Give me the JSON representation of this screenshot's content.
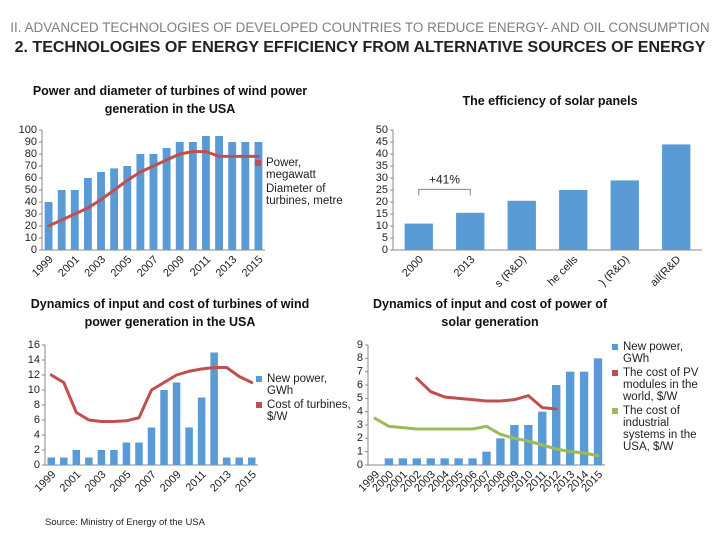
{
  "header": {
    "line1": "II. ADVANCED TECHNOLOGIES OF DEVELOPED COUNTRIES TO REDUCE ENERGY- AND OIL CONSUMPTION",
    "line2": "2. TECHNOLOGIES OF ENERGY EFFICIENCY FROM ALTERNATIVE SOURCES OF ENERGY"
  },
  "source": "Source: Ministry of Energy of the USA",
  "chart_data": [
    {
      "type": "combo",
      "title": "Power and diameter of turbines of wind power generation in the USA",
      "categories": [
        "1999",
        null,
        "2001",
        null,
        "2003",
        null,
        "2005",
        null,
        "2007",
        null,
        "2009",
        null,
        "2011",
        null,
        "2013",
        null,
        "2015"
      ],
      "series": [
        {
          "name": "Power, megawatt",
          "type": "line",
          "color": "#c0504d",
          "values": [
            20,
            25,
            30,
            35,
            42,
            50,
            58,
            65,
            70,
            75,
            80,
            82,
            82,
            78,
            78,
            78,
            78
          ]
        },
        {
          "name": "Diameter of turbines, metre",
          "type": "bar",
          "color": "#5b9bd5",
          "values": [
            40,
            50,
            50,
            60,
            65,
            68,
            70,
            80,
            80,
            85,
            90,
            90,
            95,
            95,
            90,
            90,
            90
          ]
        }
      ],
      "ylim": [
        0,
        100
      ],
      "yticks": [
        0,
        10,
        20,
        30,
        40,
        50,
        60,
        70,
        80,
        90,
        100
      ],
      "grid": false
    },
    {
      "type": "bar",
      "title": "The efficiency of solar panels",
      "categories": [
        "2000",
        "2013",
        "s (R&D)",
        "he cells",
        ") (R&D)",
        "ail(R&D"
      ],
      "values": [
        11,
        15.5,
        20.5,
        25,
        29,
        44
      ],
      "color": "#5b9bd5",
      "annotation": "+41%",
      "ylim": [
        0,
        50
      ],
      "yticks": [
        0,
        5,
        10,
        15,
        20,
        25,
        30,
        35,
        40,
        45,
        50
      ],
      "grid": false
    },
    {
      "type": "combo",
      "title": "Dynamics of input and cost of turbines of wind power generation in the USA",
      "categories": [
        "1999",
        null,
        "2001",
        null,
        "2003",
        null,
        "2005",
        null,
        "2007",
        null,
        "2009",
        null,
        "2011",
        null,
        "2013",
        null,
        "2015"
      ],
      "series": [
        {
          "name": "New power, GWh",
          "type": "bar",
          "color": "#5b9bd5",
          "values": [
            1,
            1,
            2,
            1,
            2,
            2,
            3,
            3,
            5,
            10,
            11,
            5,
            9,
            15,
            1,
            1,
            1
          ]
        },
        {
          "name": "Cost of turbines, $/W",
          "type": "line",
          "color": "#c0504d",
          "values": [
            12,
            11,
            7,
            6,
            5.8,
            5.8,
            5.9,
            6.3,
            10,
            11,
            12,
            12.5,
            12.8,
            13,
            13,
            11.8,
            11
          ]
        }
      ],
      "ylim": [
        0,
        16
      ],
      "yticks": [
        0,
        2,
        4,
        6,
        8,
        10,
        12,
        14,
        16
      ],
      "grid": false
    },
    {
      "type": "combo",
      "title": "Dynamics of input and cost of power of solar generation",
      "categories": [
        "1999",
        "2000",
        "2001",
        "2002",
        "2003",
        "2004",
        "2005",
        "2006",
        "2007",
        "2008",
        "2009",
        "2010",
        "2011",
        "2012",
        "2013",
        "2014",
        "2015"
      ],
      "series": [
        {
          "name": "New power, GWh",
          "type": "bar",
          "color": "#5b9bd5",
          "values": [
            0,
            0.5,
            0.5,
            0.5,
            0.5,
            0.5,
            0.5,
            0.5,
            1,
            2,
            3,
            3,
            4,
            6,
            7,
            7,
            8
          ]
        },
        {
          "name": "The cost of PV modules in the world, $/W",
          "type": "line",
          "color": "#c0504d",
          "values": [
            null,
            null,
            null,
            6.5,
            5.5,
            5.1,
            5,
            4.9,
            4.8,
            4.8,
            4.9,
            5.2,
            4.3,
            4.2,
            null,
            null,
            null
          ]
        },
        {
          "name": "The cost of industrial systems in the USA, $/W",
          "type": "line",
          "color": "#9bbb59",
          "values": [
            3.5,
            2.9,
            2.8,
            2.7,
            2.7,
            2.7,
            2.7,
            2.7,
            2.9,
            2.3,
            2,
            1.8,
            1.5,
            1.2,
            1,
            0.9,
            0.7
          ]
        }
      ],
      "ylim": [
        0,
        9
      ],
      "yticks": [
        0,
        1,
        2,
        3,
        4,
        5,
        6,
        7,
        8,
        9
      ],
      "grid": false
    }
  ]
}
